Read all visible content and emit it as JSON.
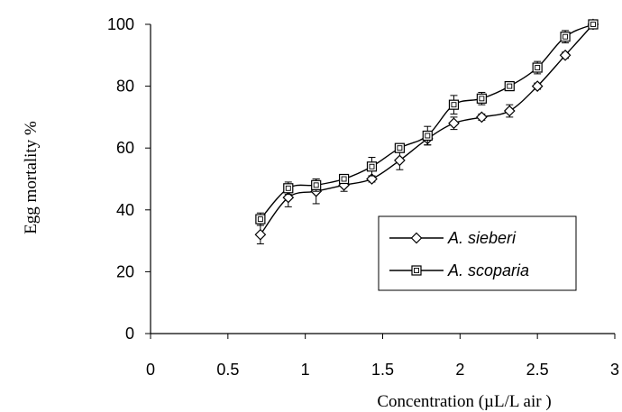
{
  "chart_data": {
    "type": "line",
    "title": "",
    "xlabel": "Concentration  (µL/L air )",
    "ylabel": "Egg  mortality %",
    "xlim": [
      0,
      3
    ],
    "ylim": [
      0,
      100
    ],
    "x_ticks": [
      "0",
      "0.5",
      "1",
      "1.5",
      "2",
      "2.5",
      "3"
    ],
    "y_ticks": [
      "0",
      "20",
      "40",
      "60",
      "80",
      "100"
    ],
    "x_tick_values": [
      0,
      0.5,
      1,
      1.5,
      2,
      2.5,
      3
    ],
    "y_tick_values": [
      0,
      20,
      40,
      60,
      80,
      100
    ],
    "grid": false,
    "legend_position": "bottom-right",
    "series": [
      {
        "name": "A. sieberi",
        "marker": "diamond",
        "color": "#000000",
        "x": [
          0.71,
          0.89,
          1.07,
          1.25,
          1.43,
          1.61,
          1.79,
          1.96,
          2.14,
          2.32,
          2.5,
          2.68,
          2.86
        ],
        "y": [
          32,
          44,
          46,
          48,
          50,
          56,
          63,
          68,
          70,
          72,
          80,
          90,
          100
        ],
        "error": [
          3,
          3,
          4,
          2,
          1,
          3,
          2,
          2,
          1,
          2,
          1,
          1,
          1
        ]
      },
      {
        "name": "A. scoparia",
        "marker": "square",
        "color": "#000000",
        "x": [
          0.71,
          0.89,
          1.07,
          1.25,
          1.43,
          1.61,
          1.79,
          1.96,
          2.14,
          2.32,
          2.5,
          2.68,
          2.86
        ],
        "y": [
          37,
          47,
          48,
          50,
          54,
          60,
          64,
          74,
          76,
          80,
          86,
          96,
          100
        ],
        "error": [
          2,
          2,
          2,
          1,
          3,
          1,
          3,
          3,
          2,
          1,
          2,
          2,
          1
        ]
      }
    ]
  }
}
